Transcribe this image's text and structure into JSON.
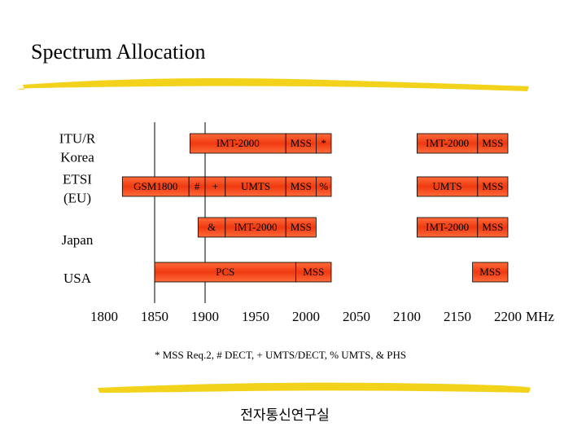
{
  "title": "Spectrum Allocation",
  "axis": {
    "xlim": [
      1800,
      2200
    ],
    "ticks": [
      1800,
      1850,
      1900,
      1950,
      2000,
      2050,
      2100,
      2150,
      2200
    ],
    "unit": "MHz"
  },
  "grid_lines": [
    1850,
    1900
  ],
  "rows": [
    {
      "label": [
        "ITU/R",
        "Korea"
      ],
      "segments": [
        {
          "label": "IMT-2000",
          "start": 1885,
          "end": 1980
        },
        {
          "label": "MSS",
          "start": 1980,
          "end": 2010
        },
        {
          "label": "*",
          "start": 2010,
          "end": 2025
        },
        {
          "label": "IMT-2000",
          "start": 2110,
          "end": 2170
        },
        {
          "label": "MSS",
          "start": 2170,
          "end": 2200
        }
      ]
    },
    {
      "label": [
        "ETSI",
        "(EU)"
      ],
      "segments": [
        {
          "label": "GSM1800",
          "start": 1818,
          "end": 1884
        },
        {
          "label": "#",
          "start": 1884,
          "end": 1900
        },
        {
          "label": "+",
          "start": 1900,
          "end": 1920
        },
        {
          "label": "UMTS",
          "start": 1920,
          "end": 1980
        },
        {
          "label": "MSS",
          "start": 1980,
          "end": 2010
        },
        {
          "label": "%",
          "start": 2010,
          "end": 2025
        },
        {
          "label": "UMTS",
          "start": 2110,
          "end": 2170
        },
        {
          "label": "MSS",
          "start": 2170,
          "end": 2200
        }
      ]
    },
    {
      "label": [
        "Japan"
      ],
      "segments": [
        {
          "label": "&",
          "start": 1893,
          "end": 1920
        },
        {
          "label": "IMT-2000",
          "start": 1920,
          "end": 1980
        },
        {
          "label": "MSS",
          "start": 1980,
          "end": 2010
        },
        {
          "label": "IMT-2000",
          "start": 2110,
          "end": 2170
        },
        {
          "label": "MSS",
          "start": 2170,
          "end": 2200
        }
      ]
    },
    {
      "label": [
        "USA"
      ],
      "segments": [
        {
          "label": "PCS",
          "start": 1850,
          "end": 1990
        },
        {
          "label": "MSS",
          "start": 1990,
          "end": 2025
        },
        {
          "label": "MSS",
          "start": 2165,
          "end": 2200
        }
      ]
    }
  ],
  "footnote": "* MSS Req.2, # DECT, + UMTS/DECT, % UMTS, & PHS",
  "footer": "전자통신연구실"
}
